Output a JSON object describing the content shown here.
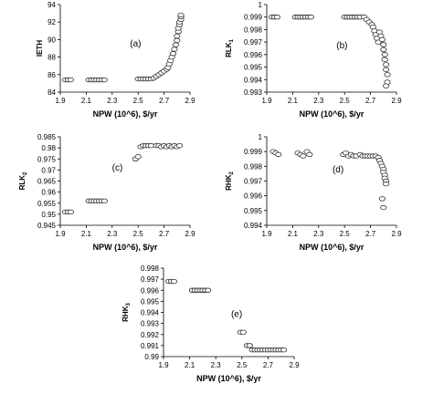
{
  "chart_data": [
    {
      "type": "scatter",
      "annotation": "(a)",
      "xlabel": "NPW (10^6), $/yr",
      "ylabel": "IETH",
      "xlim": [
        1.9,
        2.9
      ],
      "ylim": [
        84,
        94
      ],
      "xticks": [
        "1.9",
        "2.1",
        "2.3",
        "2.5",
        "2.7",
        "2.9"
      ],
      "yticks": [
        "84",
        "86",
        "88",
        "90",
        "92",
        "94"
      ],
      "grid": false,
      "x": [
        1.94,
        1.96,
        1.98,
        2.12,
        2.14,
        2.16,
        2.18,
        2.2,
        2.22,
        2.24,
        2.5,
        2.52,
        2.54,
        2.56,
        2.58,
        2.6,
        2.62,
        2.64,
        2.66,
        2.68,
        2.7,
        2.72,
        2.73,
        2.74,
        2.75,
        2.76,
        2.77,
        2.78,
        2.79,
        2.8,
        2.8,
        2.81,
        2.81,
        2.82,
        2.82,
        2.83,
        2.83,
        2.83
      ],
      "y": [
        85.4,
        85.4,
        85.4,
        85.4,
        85.4,
        85.4,
        85.4,
        85.4,
        85.4,
        85.4,
        85.5,
        85.5,
        85.5,
        85.5,
        85.5,
        85.5,
        85.6,
        85.8,
        86.0,
        86.2,
        86.4,
        86.6,
        86.8,
        87.2,
        87.6,
        88.0,
        88.4,
        88.9,
        89.4,
        89.9,
        90.4,
        90.9,
        91.3,
        91.7,
        92.0,
        92.3,
        92.6,
        92.8
      ]
    },
    {
      "type": "scatter",
      "annotation": "(b)",
      "xlabel": "NPW (10^6), $/yr",
      "ylabel": "RLK",
      "ylabel_sub": "1",
      "xlim": [
        1.9,
        2.9
      ],
      "ylim": [
        0.993,
        1
      ],
      "xticks": [
        "1.9",
        "2.1",
        "2.3",
        "2.5",
        "2.7",
        "2.9"
      ],
      "yticks": [
        "0.993",
        "0.994",
        "0.995",
        "0.996",
        "0.997",
        "0.998",
        "0.999",
        "1"
      ],
      "grid": false,
      "x": [
        1.94,
        1.96,
        1.98,
        2.12,
        2.14,
        2.16,
        2.18,
        2.2,
        2.22,
        2.24,
        2.5,
        2.52,
        2.54,
        2.56,
        2.58,
        2.6,
        2.62,
        2.65,
        2.67,
        2.69,
        2.71,
        2.72,
        2.73,
        2.74,
        2.75,
        2.76,
        2.77,
        2.78,
        2.79,
        2.8,
        2.8,
        2.81,
        2.81,
        2.82,
        2.82,
        2.83,
        2.83,
        2.82
      ],
      "y": [
        0.999,
        0.999,
        0.999,
        0.999,
        0.999,
        0.999,
        0.999,
        0.999,
        0.999,
        0.999,
        0.999,
        0.999,
        0.999,
        0.999,
        0.999,
        0.999,
        0.999,
        0.999,
        0.9988,
        0.9986,
        0.9984,
        0.9982,
        0.9979,
        0.9976,
        0.9973,
        0.997,
        0.9978,
        0.9975,
        0.9972,
        0.9968,
        0.9964,
        0.996,
        0.9956,
        0.9952,
        0.9948,
        0.9944,
        0.9938,
        0.9935
      ]
    },
    {
      "type": "scatter",
      "annotation": "(c)",
      "xlabel": "NPW (10^6), $/yr",
      "ylabel": "RLK",
      "ylabel_sub": "2",
      "xlim": [
        1.9,
        2.9
      ],
      "ylim": [
        0.945,
        0.985
      ],
      "xticks": [
        "1.9",
        "2.1",
        "2.3",
        "2.5",
        "2.7",
        "2.9"
      ],
      "yticks": [
        "0.945",
        "0.95",
        "0.955",
        "0.96",
        "0.965",
        "0.97",
        "0.975",
        "0.98",
        "0.985"
      ],
      "grid": false,
      "x": [
        1.94,
        1.96,
        1.98,
        2.12,
        2.14,
        2.16,
        2.18,
        2.2,
        2.22,
        2.24,
        2.48,
        2.5,
        2.52,
        2.54,
        2.56,
        2.58,
        2.6,
        2.64,
        2.66,
        2.68,
        2.7,
        2.72,
        2.74,
        2.76,
        2.78,
        2.8,
        2.82
      ],
      "y": [
        0.951,
        0.951,
        0.951,
        0.956,
        0.956,
        0.956,
        0.956,
        0.956,
        0.956,
        0.956,
        0.975,
        0.976,
        0.9805,
        0.981,
        0.981,
        0.981,
        0.981,
        0.981,
        0.981,
        0.9805,
        0.981,
        0.9805,
        0.981,
        0.9805,
        0.981,
        0.9805,
        0.981
      ]
    },
    {
      "type": "scatter",
      "annotation": "(d)",
      "xlabel": "NPW (10^6), $/yr",
      "ylabel": "RHK",
      "ylabel_sub": "2",
      "xlim": [
        1.9,
        2.9
      ],
      "ylim": [
        0.994,
        1
      ],
      "xticks": [
        "1.9",
        "2.1",
        "2.3",
        "2.5",
        "2.7",
        "2.9"
      ],
      "yticks": [
        "0.994",
        "0.995",
        "0.996",
        "0.997",
        "0.998",
        "0.999",
        "1"
      ],
      "grid": false,
      "x": [
        1.95,
        1.97,
        1.99,
        2.14,
        2.16,
        2.18,
        2.21,
        2.23,
        2.49,
        2.51,
        2.53,
        2.55,
        2.57,
        2.59,
        2.62,
        2.64,
        2.66,
        2.68,
        2.7,
        2.72,
        2.74,
        2.76,
        2.77,
        2.78,
        2.79,
        2.8,
        2.8,
        2.81,
        2.81,
        2.82,
        2.82,
        2.79,
        2.8
      ],
      "y": [
        0.999,
        0.9989,
        0.9988,
        0.9989,
        0.9988,
        0.9987,
        0.999,
        0.9988,
        0.9988,
        0.9989,
        0.9987,
        0.9988,
        0.9987,
        0.9987,
        0.9988,
        0.9987,
        0.9987,
        0.9987,
        0.9987,
        0.9987,
        0.9987,
        0.9986,
        0.9984,
        0.9982,
        0.998,
        0.9978,
        0.9976,
        0.9974,
        0.9972,
        0.997,
        0.9968,
        0.9958,
        0.9952
      ]
    },
    {
      "type": "scatter",
      "annotation": "(e)",
      "xlabel": "NPW (10^6), $/yr",
      "ylabel": "RHK",
      "ylabel_sub": "3",
      "xlim": [
        1.9,
        2.9
      ],
      "ylim": [
        0.99,
        0.998
      ],
      "xticks": [
        "1.9",
        "2.1",
        "2.3",
        "2.5",
        "2.7",
        "2.9"
      ],
      "yticks": [
        "0.99",
        "0.991",
        "0.992",
        "0.993",
        "0.994",
        "0.995",
        "0.996",
        "0.997",
        "0.998"
      ],
      "grid": false,
      "x": [
        1.94,
        1.96,
        1.98,
        2.12,
        2.14,
        2.16,
        2.18,
        2.2,
        2.22,
        2.24,
        2.49,
        2.51,
        2.54,
        2.56,
        2.58,
        2.6,
        2.62,
        2.64,
        2.66,
        2.68,
        2.7,
        2.72,
        2.74,
        2.76,
        2.78,
        2.8,
        2.82
      ],
      "y": [
        0.9968,
        0.9968,
        0.9968,
        0.996,
        0.996,
        0.996,
        0.996,
        0.996,
        0.996,
        0.996,
        0.9922,
        0.9922,
        0.991,
        0.991,
        0.9906,
        0.9906,
        0.9906,
        0.9906,
        0.9906,
        0.9906,
        0.9906,
        0.9906,
        0.9906,
        0.9906,
        0.9906,
        0.9906,
        0.9906
      ]
    }
  ]
}
